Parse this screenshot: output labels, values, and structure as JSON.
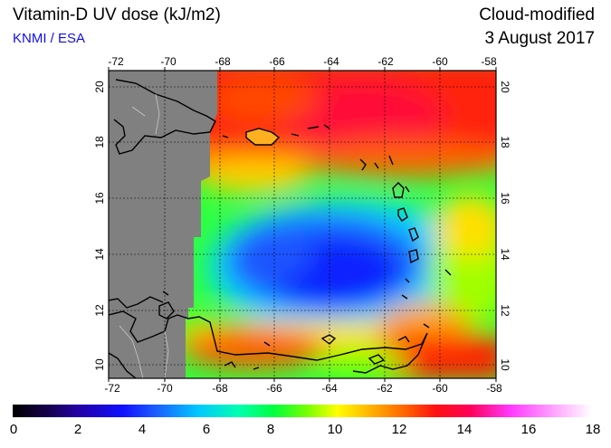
{
  "header": {
    "title": "Vitamin-D UV dose (kJ/m2)",
    "credit": "KNMI / ESA",
    "subtitle": "Cloud-modified",
    "date": "3 August 2017"
  },
  "map": {
    "lon_ticks": [
      "-72",
      "-70",
      "-68",
      "-66",
      "-64",
      "-62",
      "-60",
      "-58"
    ],
    "lat_ticks": [
      "10",
      "12",
      "14",
      "16",
      "18",
      "20"
    ],
    "no_data_color": "#808080"
  },
  "colorbar": {
    "labels": [
      "0",
      "2",
      "4",
      "6",
      "8",
      "10",
      "12",
      "14",
      "16",
      "18"
    ],
    "min": 0,
    "max": 18
  }
}
